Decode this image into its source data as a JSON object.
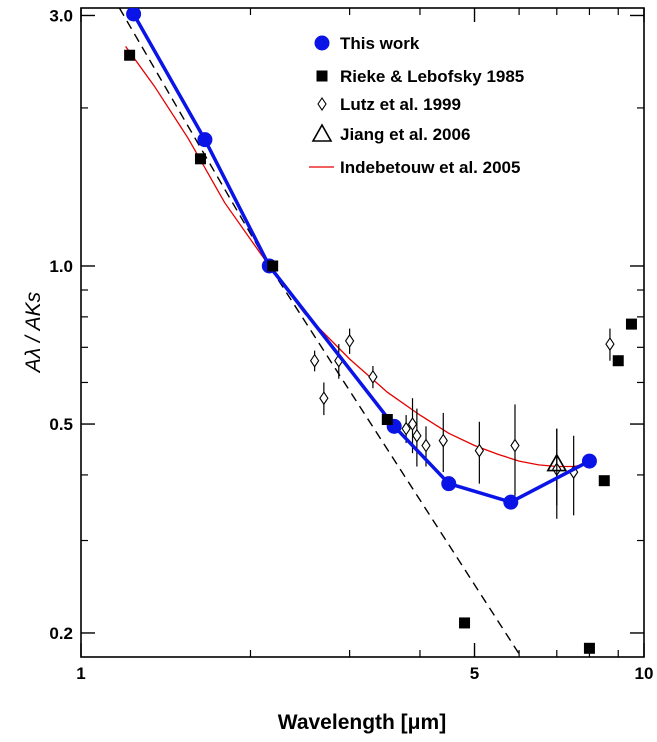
{
  "chart_data": {
    "type": "scatter",
    "xlabel": "Wavelength [μm]",
    "ylabel": "Aλ / AKs",
    "x_scale": "log",
    "y_scale": "log",
    "xlim": [
      1.0,
      10.0
    ],
    "ylim": [
      0.18,
      3.1
    ],
    "x_ticks": [
      {
        "value": 1,
        "label": "1"
      },
      {
        "value": 5,
        "label": "5"
      },
      {
        "value": 10,
        "label": "10"
      }
    ],
    "y_ticks": [
      {
        "value": 0.2,
        "label": "0.2"
      },
      {
        "value": 0.5,
        "label": "0.5"
      },
      {
        "value": 1.0,
        "label": "1.0"
      },
      {
        "value": 3.0,
        "label": "3.0"
      }
    ],
    "grid": false,
    "legend_position": "top-right",
    "series": [
      {
        "name": "This work",
        "marker": "filled-circle-line",
        "color": "#0a14e6",
        "points": [
          {
            "x": 1.24,
            "y": 3.02
          },
          {
            "x": 1.66,
            "y": 1.74
          },
          {
            "x": 2.16,
            "y": 1.0
          },
          {
            "x": 3.6,
            "y": 0.495
          },
          {
            "x": 4.5,
            "y": 0.385
          },
          {
            "x": 5.8,
            "y": 0.355
          },
          {
            "x": 8.0,
            "y": 0.425
          }
        ]
      },
      {
        "name": "Rieke & Lebofsky 1985",
        "marker": "filled-square",
        "color": "#000000",
        "points": [
          {
            "x": 1.22,
            "y": 2.52
          },
          {
            "x": 1.63,
            "y": 1.6
          },
          {
            "x": 2.19,
            "y": 1.0
          },
          {
            "x": 3.5,
            "y": 0.51
          },
          {
            "x": 4.8,
            "y": 0.209
          },
          {
            "x": 8.0,
            "y": 0.187
          },
          {
            "x": 8.5,
            "y": 0.39
          },
          {
            "x": 9.0,
            "y": 0.66
          },
          {
            "x": 9.5,
            "y": 0.775
          }
        ]
      },
      {
        "name": "Lutz et al. 1999",
        "marker": "open-diamond",
        "color": "#000000",
        "points": [
          {
            "x": 2.6,
            "y": 0.66,
            "err": 0.03
          },
          {
            "x": 2.7,
            "y": 0.56,
            "err": 0.04
          },
          {
            "x": 2.87,
            "y": 0.66,
            "err": 0.05
          },
          {
            "x": 3.0,
            "y": 0.72,
            "err": 0.04
          },
          {
            "x": 3.3,
            "y": 0.615,
            "err": 0.03
          },
          {
            "x": 3.78,
            "y": 0.49,
            "err": 0.03
          },
          {
            "x": 3.88,
            "y": 0.5,
            "err": 0.06
          },
          {
            "x": 3.95,
            "y": 0.475,
            "err": 0.06
          },
          {
            "x": 4.1,
            "y": 0.455,
            "err": 0.04
          },
          {
            "x": 4.4,
            "y": 0.465,
            "err": 0.06
          },
          {
            "x": 5.1,
            "y": 0.445,
            "err": 0.06
          },
          {
            "x": 5.9,
            "y": 0.455,
            "err": 0.09
          },
          {
            "x": 7.0,
            "y": 0.41,
            "err": 0.08
          },
          {
            "x": 7.5,
            "y": 0.405,
            "err": 0.07
          },
          {
            "x": 8.7,
            "y": 0.71,
            "err": 0.05
          }
        ]
      },
      {
        "name": "Jiang et al. 2006",
        "marker": "open-triangle",
        "color": "#000000",
        "points": [
          {
            "x": 7.0,
            "y": 0.42,
            "err": 0.07
          }
        ]
      },
      {
        "name": "Indebetouw et al. 2005",
        "marker": "line",
        "color": "#e60000",
        "points": [
          {
            "x": 1.2,
            "y": 2.62
          },
          {
            "x": 1.35,
            "y": 2.2
          },
          {
            "x": 1.55,
            "y": 1.75
          },
          {
            "x": 1.8,
            "y": 1.32
          },
          {
            "x": 2.16,
            "y": 1.0
          },
          {
            "x": 2.5,
            "y": 0.81
          },
          {
            "x": 3.0,
            "y": 0.665
          },
          {
            "x": 3.5,
            "y": 0.575
          },
          {
            "x": 4.0,
            "y": 0.52
          },
          {
            "x": 4.5,
            "y": 0.48
          },
          {
            "x": 5.0,
            "y": 0.455
          },
          {
            "x": 5.5,
            "y": 0.438
          },
          {
            "x": 6.0,
            "y": 0.425
          },
          {
            "x": 6.5,
            "y": 0.418
          },
          {
            "x": 7.0,
            "y": 0.415
          },
          {
            "x": 7.5,
            "y": 0.415
          },
          {
            "x": 8.0,
            "y": 0.42
          }
        ]
      },
      {
        "name": "",
        "marker": "dashed-line",
        "color": "#000000",
        "points": [
          {
            "x": 1.17,
            "y": 3.1
          },
          {
            "x": 2.16,
            "y": 1.0
          },
          {
            "x": 6.05,
            "y": 0.18
          }
        ]
      }
    ]
  }
}
